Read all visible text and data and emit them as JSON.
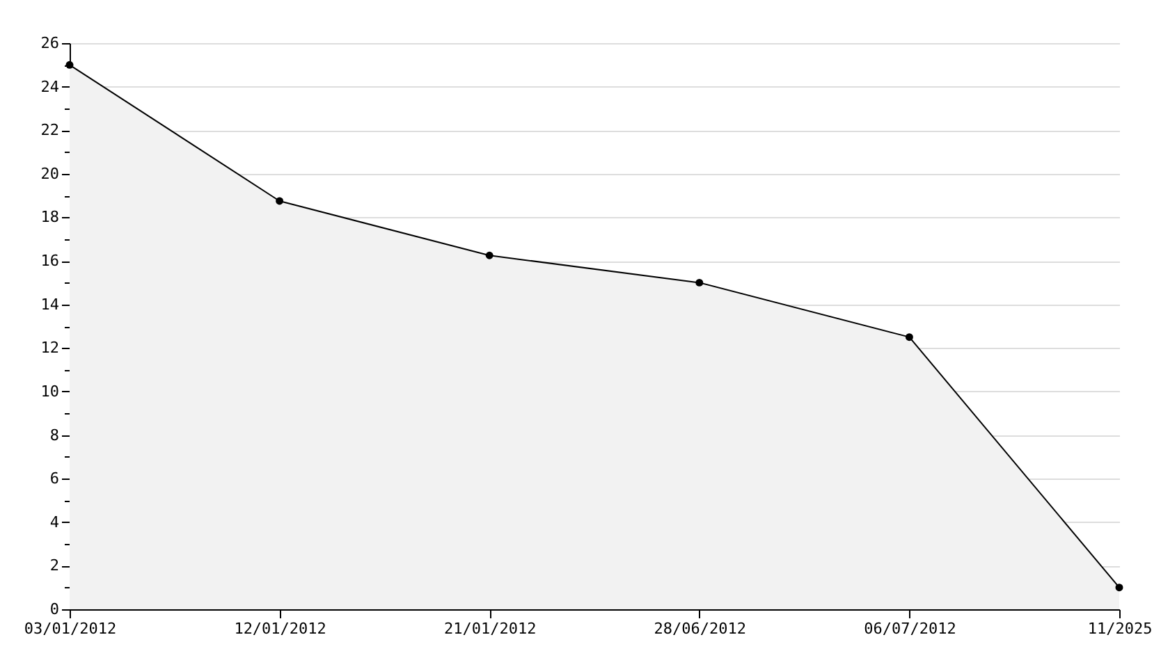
{
  "chart_data": {
    "type": "area",
    "categories": [
      "03/01/2012",
      "12/01/2012",
      "21/01/2012",
      "28/06/2012",
      "06/07/2012",
      "11/2025"
    ],
    "series": [
      {
        "color": "#000000",
        "values": [
          25,
          18.75,
          16.25,
          15,
          12.5,
          1
        ]
      }
    ],
    "ylim": [
      0,
      26
    ],
    "yticks": [
      0,
      {
        "value": 1,
        "label": null
      },
      2,
      {
        "value": 3,
        "label": null
      },
      4,
      {
        "value": 5,
        "label": null
      },
      6,
      {
        "value": 7,
        "label": null
      },
      8,
      {
        "value": 9,
        "label": null
      },
      10,
      {
        "value": 11,
        "label": null
      },
      12,
      {
        "value": 13,
        "label": null
      },
      14,
      {
        "value": 15,
        "label": null
      },
      16,
      {
        "value": 17,
        "label": null
      },
      18,
      {
        "value": 19,
        "label": null
      },
      20,
      {
        "value": 21,
        "label": null
      },
      22,
      {
        "value": 23,
        "label": null
      },
      24,
      {
        "value": 25,
        "label": null
      },
      26
    ],
    "grid": "y",
    "marker": "circle"
  }
}
